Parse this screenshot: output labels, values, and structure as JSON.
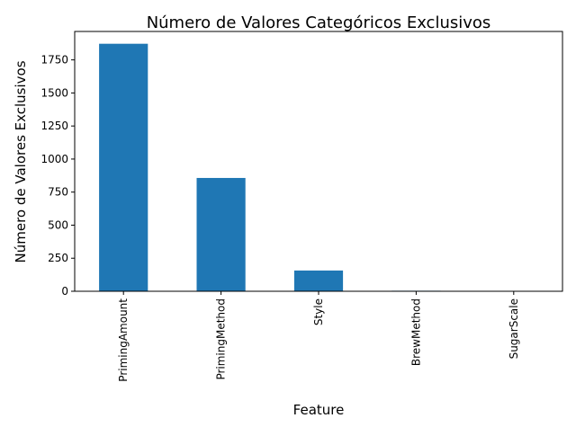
{
  "chart_data": {
    "type": "bar",
    "title": "Número de Valores Categóricos Exclusivos",
    "xlabel": "Feature",
    "ylabel": "Número de Valores Exclusivos",
    "categories": [
      "PrimingAmount",
      "PrimingMethod",
      "Style",
      "BrewMethod",
      "SugarScale"
    ],
    "values": [
      1872,
      857,
      157,
      4,
      2
    ],
    "ylim": [
      0,
      1965
    ],
    "yticks": [
      0,
      250,
      500,
      750,
      1000,
      1250,
      1500,
      1750
    ],
    "yticklabels": [
      "0",
      "250",
      "500",
      "750",
      "1000",
      "1250",
      "1500",
      "1750"
    ],
    "bar_color": "#1f77b4",
    "grid": false,
    "legend": "none"
  }
}
